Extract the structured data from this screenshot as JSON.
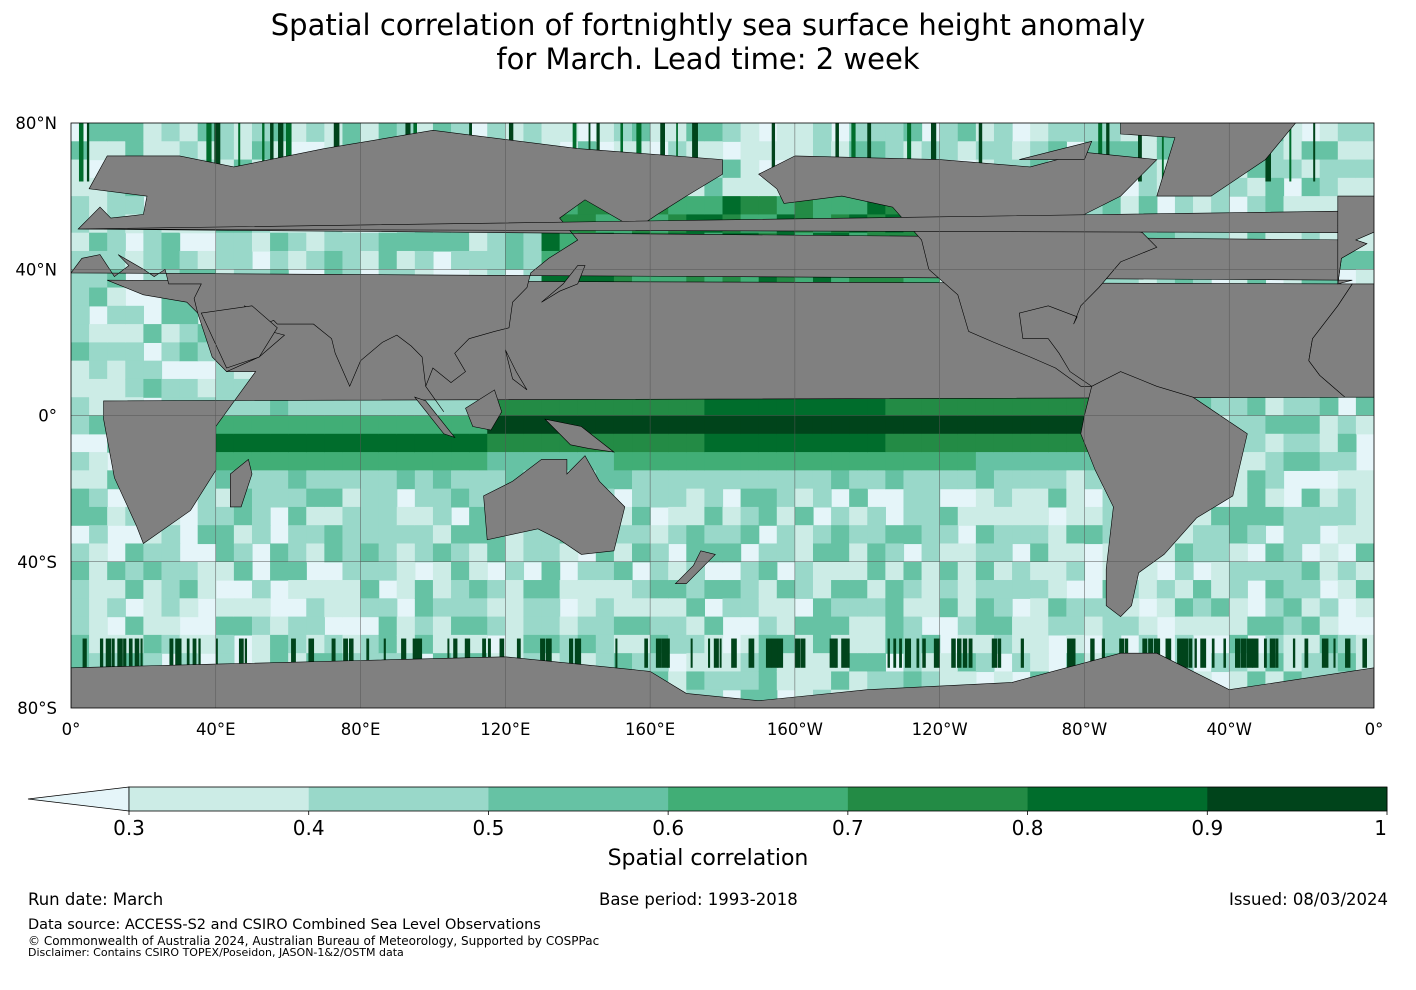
{
  "title": {
    "line1": "Spatial correlation of fortnightly sea surface height anomaly",
    "line2": "for March. Lead time: 2 week"
  },
  "map": {
    "lat_ticks": [
      "80°N",
      "40°N",
      "0°",
      "40°S",
      "80°S"
    ],
    "lon_ticks": [
      "0°",
      "40°E",
      "80°E",
      "120°E",
      "160°E",
      "160°W",
      "120°W",
      "80°W",
      "40°W",
      "0°"
    ],
    "land_color": "#808080",
    "ocean_low_color": "#e5f5f9",
    "gridline_color": "#555555"
  },
  "colorbar": {
    "label": "Spatial correlation",
    "ticks": [
      "0.3",
      "0.4",
      "0.5",
      "0.6",
      "0.7",
      "0.8",
      "0.9",
      "1"
    ],
    "colors": [
      "#e5f5f9",
      "#ccece6",
      "#99d8c9",
      "#66c2a4",
      "#41ae76",
      "#238b45",
      "#006d2c",
      "#00441b"
    ],
    "extend": "min"
  },
  "footer": {
    "run_date": "Run date: March",
    "base_period": "Base period: 1993-2018",
    "issued": "Issued: 08/03/2024",
    "data_source": "Data source: ACCESS-S2 and CSIRO Combined Sea Level Observations",
    "copyright": "© Commonwealth of Australia 2024, Australian Bureau of Meteorology, Supported by COSPPac",
    "disclaimer": "Disclaimer: Contains CSIRO TOPEX/Poseidon, JASON-1&2/OSTM data"
  }
}
